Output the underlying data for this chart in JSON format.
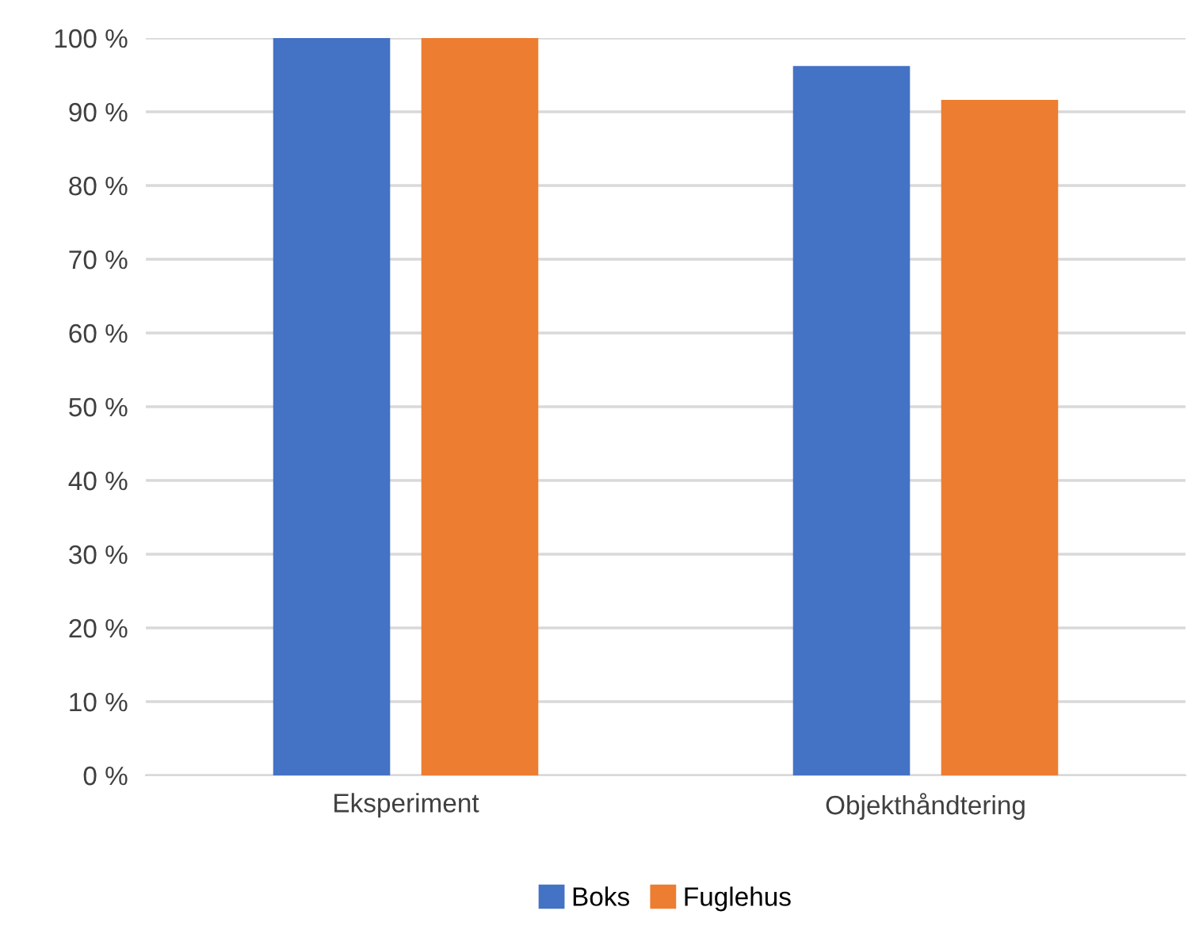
{
  "chart_data": {
    "type": "bar",
    "categories": [
      "Eksperiment",
      "Objekthåndtering"
    ],
    "series": [
      {
        "name": "Boks",
        "color": "#4472c4",
        "values": [
          100,
          96.2
        ]
      },
      {
        "name": "Fuglehus",
        "color": "#ed7d31",
        "values": [
          100,
          91.6
        ]
      }
    ],
    "ylim": [
      0,
      100
    ],
    "yticks": [
      {
        "value": 0,
        "label": "0 %"
      },
      {
        "value": 10,
        "label": "10 %"
      },
      {
        "value": 20,
        "label": "20 %"
      },
      {
        "value": 30,
        "label": "30 %"
      },
      {
        "value": 40,
        "label": "40 %"
      },
      {
        "value": 50,
        "label": "50 %"
      },
      {
        "value": 60,
        "label": "60 %"
      },
      {
        "value": 70,
        "label": "70 %"
      },
      {
        "value": 80,
        "label": "80 %"
      },
      {
        "value": 90,
        "label": "90 %"
      },
      {
        "value": 100,
        "label": "100 %"
      }
    ],
    "grid": "y",
    "legend": "bottom"
  }
}
